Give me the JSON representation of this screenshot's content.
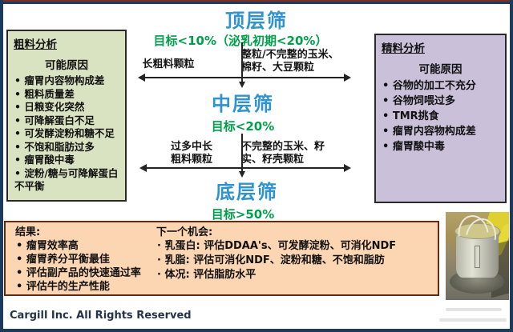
{
  "colors": {
    "header_blue": "#2e93d0",
    "target_green": "#00a04a",
    "coarse_bg": "#d9e3c1",
    "fine_bg": "#cac0da",
    "results_bg": "#fcd5b3",
    "frame_navy": "#1b3a5c",
    "frame_maroon": "#7b2f25"
  },
  "sieves": {
    "top": {
      "title": "顶层筛",
      "target": "目标<10%（泌乳初期<20%）"
    },
    "middle": {
      "title": "中层筛",
      "target": "目标<20%"
    },
    "bottom": {
      "title": "底层筛",
      "target": "目标>50%"
    }
  },
  "flow_labels": {
    "top_left": "长粗料颗粒",
    "top_right_line1": "整粒/不完整的玉米、",
    "top_right_line2": "棉籽、大豆颗粒",
    "mid_left_line1": "过多中长",
    "mid_left_line2": "粗料颗粒",
    "mid_right_line1": "不完整的玉米、籽",
    "mid_right_line2": "实、籽壳颗粒"
  },
  "coarse_box": {
    "title": "粗料分析",
    "subtitle": "可能原因",
    "items": [
      "瘤胃内容物构成差",
      "粗料质量差",
      "日粮变化突然",
      "可降解蛋白不足",
      "可发酵淀粉和糖不足",
      "不饱和脂肪过多",
      "瘤胃酸中毒",
      "淀粉/糖与可降解蛋白不平衡"
    ]
  },
  "fine_box": {
    "title": "精料分析",
    "subtitle": "可能原因",
    "items": [
      "谷物的加工不充分",
      "谷物饲喂过多",
      "TMR挑食",
      "瘤胃内容物构成差",
      "瘤胃酸中毒"
    ]
  },
  "results_box": {
    "title": "结果:",
    "items": [
      "瘤胃效率高",
      "瘤胃养分平衡最佳",
      "评估副产品的快速通过率",
      "评估牛的生产性能"
    ]
  },
  "opportunities": {
    "title": "下一个机会:",
    "items": [
      "乳蛋白: 评估DDAA's、可发酵淀粉、可消化NDF",
      "乳脂: 评估可消化NDF、淀粉和糖、不饱和脂肪",
      "体况: 评估脂肪水平"
    ]
  },
  "footer": {
    "copyright": "Cargill Inc. All Rights Reserved"
  },
  "photo": {
    "caption": "TMR颗粒度分级筛照片"
  }
}
